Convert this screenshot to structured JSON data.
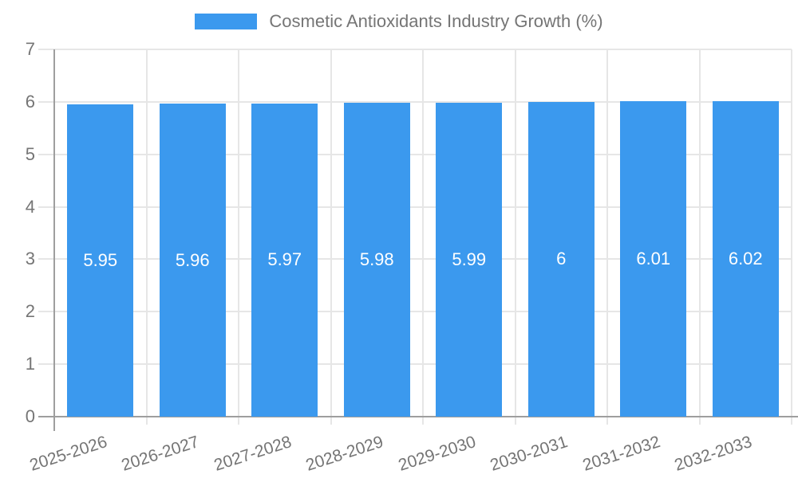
{
  "legend": {
    "label": "Cosmetic Antioxidants Industry Growth (%)"
  },
  "chart_data": {
    "type": "bar",
    "title": "Cosmetic Antioxidants Industry Growth (%)",
    "categories": [
      "2025-2026",
      "2026-2027",
      "2027-2028",
      "2028-2029",
      "2029-2030",
      "2030-2031",
      "2031-2032",
      "2032-2033"
    ],
    "values": [
      5.95,
      5.96,
      5.97,
      5.98,
      5.99,
      6,
      6.01,
      6.02
    ],
    "bar_labels": [
      "5.95",
      "5.96",
      "5.97",
      "5.98",
      "5.99",
      "6",
      "6.01",
      "6.02"
    ],
    "xlabel": "",
    "ylabel": "",
    "ylim": [
      0,
      7
    ],
    "yticks": [
      "0",
      "1",
      "2",
      "3",
      "4",
      "5",
      "6",
      "7"
    ],
    "grid": true,
    "legend_position": "top",
    "x_label_rotation_deg": -18,
    "colors": {
      "bar": "#3b99ee",
      "bar_value_text": "#ffffff",
      "axis_text": "#757575",
      "gridline": "#e6e6e6",
      "axis_line": "#9e9e9e",
      "background": "#ffffff"
    }
  }
}
